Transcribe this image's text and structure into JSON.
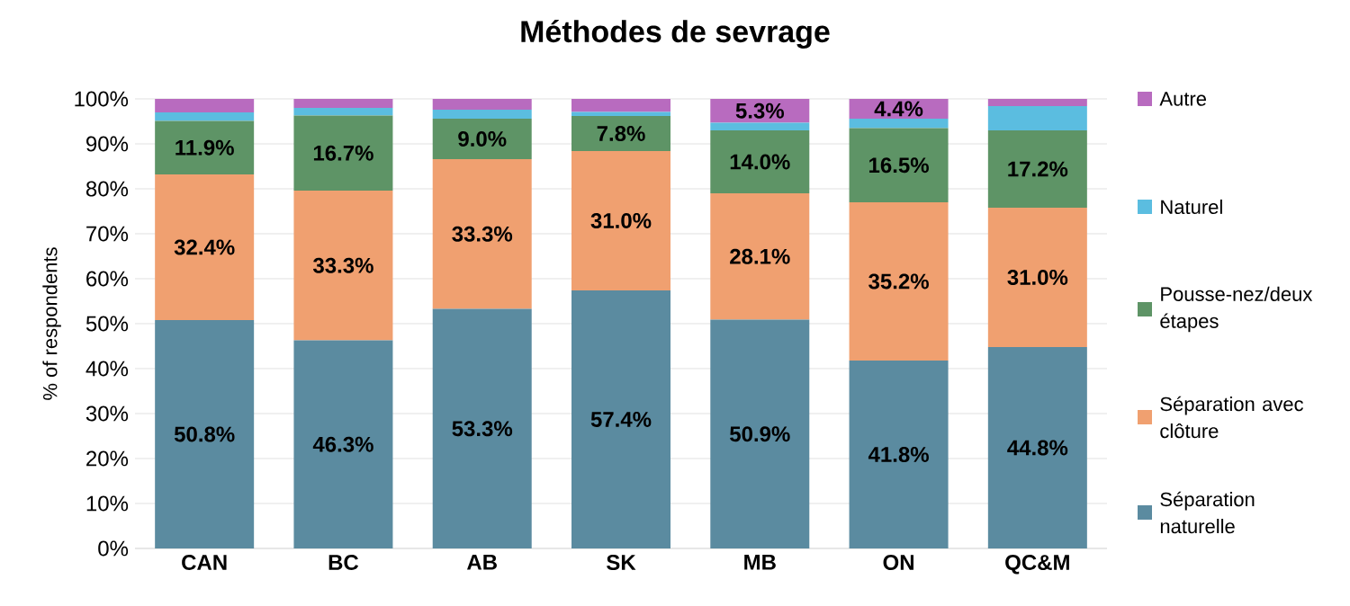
{
  "chart_data": {
    "type": "bar",
    "stacked": true,
    "title": "Méthodes de sevrage",
    "ylabel": "% of respondents",
    "categories": [
      "CAN",
      "BC",
      "AB",
      "SK",
      "MB",
      "ON",
      "QC&M"
    ],
    "series": [
      {
        "name": "Séparation naturelle",
        "color": "#5b8ba0",
        "values": [
          50.8,
          46.3,
          53.3,
          57.4,
          50.9,
          41.8,
          44.8
        ],
        "value_labels": [
          "50.8%",
          "46.3%",
          "53.3%",
          "57.4%",
          "50.9%",
          "41.8%",
          "44.8%"
        ]
      },
      {
        "name": "Séparation avec clôture",
        "color": "#f0a070",
        "values": [
          32.4,
          33.3,
          33.3,
          31.0,
          28.1,
          35.2,
          31.0
        ],
        "value_labels": [
          "32.4%",
          "33.3%",
          "33.3%",
          "31.0%",
          "28.1%",
          "35.2%",
          "31.0%"
        ]
      },
      {
        "name": "Pousse-nez/deux étapes",
        "color": "#5e9466",
        "values": [
          11.9,
          16.7,
          9.0,
          7.8,
          14.0,
          16.5,
          17.2
        ],
        "value_labels": [
          "11.9%",
          "16.7%",
          "9.0%",
          "7.8%",
          "14.0%",
          "16.5%",
          "17.2%"
        ]
      },
      {
        "name": "Naturel",
        "color": "#5bbde0",
        "values": [
          1.9,
          1.7,
          2.0,
          0.9,
          1.7,
          2.1,
          5.4
        ]
      },
      {
        "name": "Autre",
        "color": "#b86bbf",
        "values": [
          3.0,
          2.0,
          2.4,
          2.9,
          5.3,
          4.4,
          1.6
        ],
        "value_labels": [
          null,
          null,
          null,
          null,
          "5.3%",
          "4.4%",
          null
        ]
      }
    ],
    "ylim": [
      0,
      100
    ],
    "yticks": [
      {
        "value": 0,
        "label": "0%"
      },
      {
        "value": 10,
        "label": "10%"
      },
      {
        "value": 20,
        "label": "20%"
      },
      {
        "value": 30,
        "label": "30%"
      },
      {
        "value": 40,
        "label": "40%"
      },
      {
        "value": 50,
        "label": "50%"
      },
      {
        "value": 60,
        "label": "60%"
      },
      {
        "value": 70,
        "label": "70%"
      },
      {
        "value": 80,
        "label": "80%"
      },
      {
        "value": 90,
        "label": "90%"
      },
      {
        "value": 100,
        "label": "100%"
      }
    ],
    "grid": "y",
    "legend": "right"
  }
}
